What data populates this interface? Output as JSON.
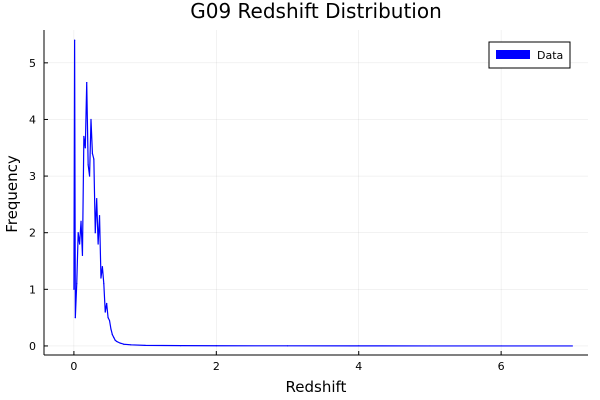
{
  "chart_data": {
    "type": "line",
    "title": "G09 Redshift Distribution",
    "xlabel": "Redshift",
    "ylabel": "Frequency",
    "xlim": [
      -0.42,
      7.22
    ],
    "ylim": [
      -0.16,
      5.58
    ],
    "xticks": [
      0,
      2,
      4,
      6
    ],
    "yticks": [
      0,
      1,
      2,
      3,
      4,
      5
    ],
    "grid": true,
    "legend_position": "top-right",
    "series": [
      {
        "name": "Data",
        "color": "#0000ff",
        "x": [
          0.0,
          0.01,
          0.02,
          0.04,
          0.06,
          0.08,
          0.1,
          0.12,
          0.14,
          0.16,
          0.18,
          0.2,
          0.22,
          0.24,
          0.26,
          0.28,
          0.3,
          0.32,
          0.34,
          0.36,
          0.38,
          0.4,
          0.42,
          0.44,
          0.46,
          0.48,
          0.5,
          0.52,
          0.54,
          0.56,
          0.58,
          0.6,
          0.65,
          0.7,
          0.8,
          1.0,
          1.5,
          2.0,
          3.0,
          4.0,
          5.0,
          6.0,
          7.0
        ],
        "y": [
          1.0,
          5.4,
          0.5,
          1.1,
          2.0,
          1.8,
          2.2,
          1.6,
          3.7,
          3.5,
          4.65,
          3.2,
          3.0,
          4.0,
          3.4,
          3.3,
          2.0,
          2.6,
          1.8,
          2.3,
          1.2,
          1.4,
          1.1,
          0.6,
          0.75,
          0.5,
          0.45,
          0.3,
          0.2,
          0.15,
          0.1,
          0.08,
          0.05,
          0.03,
          0.02,
          0.01,
          0.005,
          0.003,
          0.002,
          0.001,
          0.0,
          0.0,
          0.0
        ]
      }
    ]
  }
}
